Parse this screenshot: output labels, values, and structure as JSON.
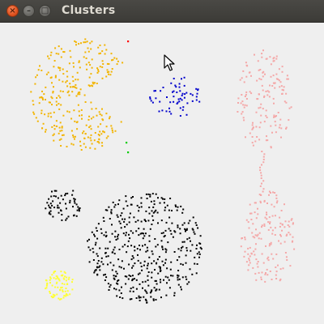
{
  "window": {
    "title": "Clusters",
    "buttons": {
      "close_glyph": "×",
      "minimize_glyph": "–",
      "maximize_glyph": "□"
    }
  },
  "canvas": {
    "background": "#efefef",
    "clusters": [
      {
        "name": "orange-cluster",
        "color": "#f2b400",
        "points": 300
      },
      {
        "name": "blue-cluster",
        "color": "#0000cc",
        "points": 60
      },
      {
        "name": "pink-upper-cluster",
        "color": "#f4a7a7",
        "points": 150
      },
      {
        "name": "pink-lower-cluster",
        "color": "#f4a7a7",
        "points": 160
      },
      {
        "name": "black-small-cluster",
        "color": "#000000",
        "points": 60
      },
      {
        "name": "black-large-cluster",
        "color": "#000000",
        "points": 440
      },
      {
        "name": "yellow-cluster",
        "color": "#ffff33",
        "points": 80
      },
      {
        "name": "green-points",
        "color": "#00cc00",
        "points": 2
      },
      {
        "name": "red-point",
        "color": "#ff0000",
        "points": 1
      }
    ]
  },
  "cursor": {
    "icon": "arrow-cursor-icon"
  }
}
